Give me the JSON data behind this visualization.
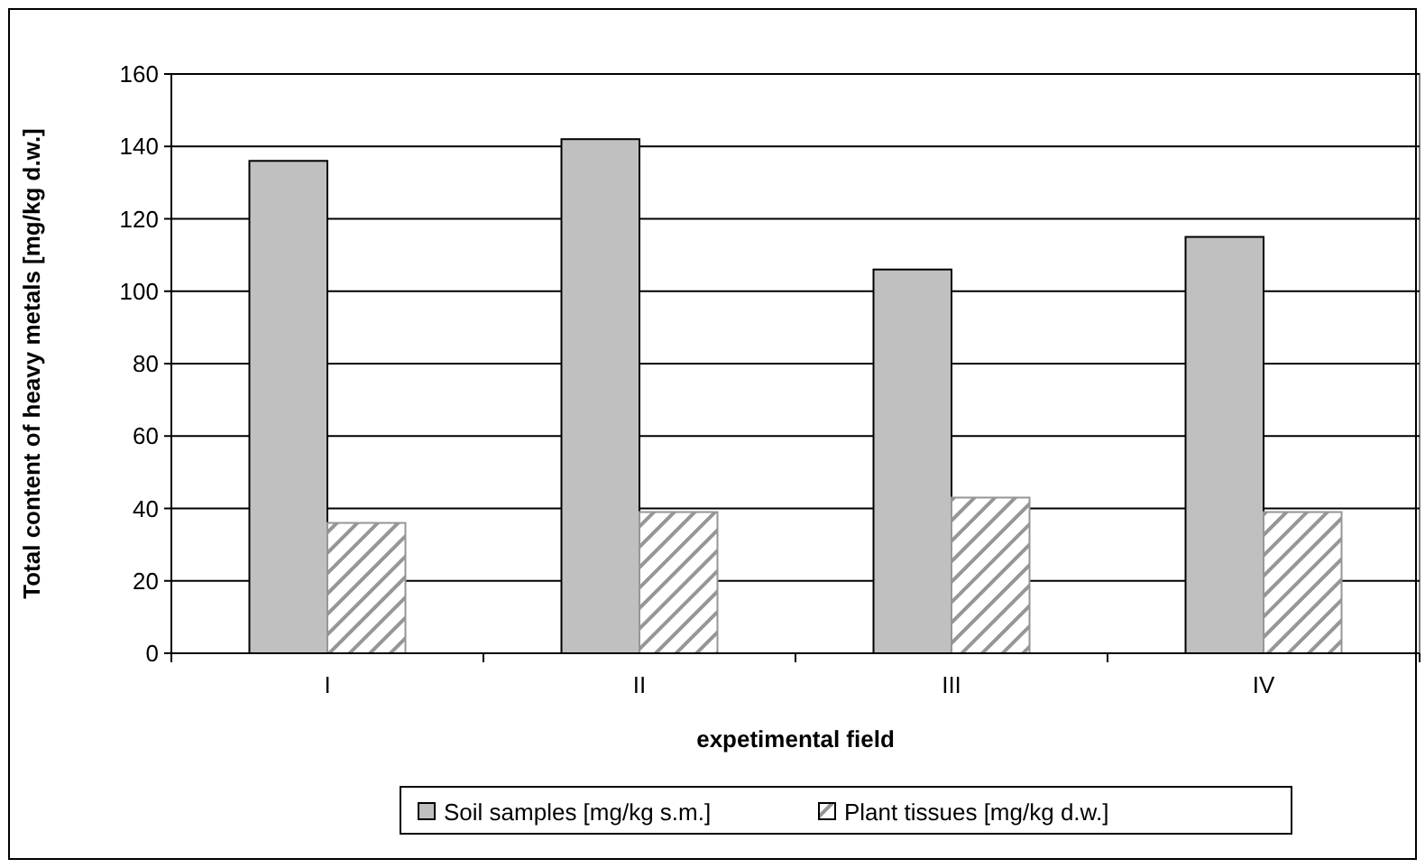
{
  "chart_data": {
    "type": "bar",
    "xlabel": "expetimental field",
    "ylabel": "Total content of heavy metals [mg/kg d.w.]",
    "categories": [
      "I",
      "II",
      "III",
      "IV"
    ],
    "series": [
      {
        "name": "Soil samples [mg/kg s.m.]",
        "color": "#c0c0c0",
        "values": [
          136,
          142,
          106,
          115
        ]
      },
      {
        "name": "Plant tissues [mg/kg d.w.]",
        "color": "#969696",
        "values": [
          36,
          39,
          43,
          39
        ]
      }
    ],
    "ylim": [
      0,
      160
    ],
    "yticks": [
      0,
      20,
      40,
      60,
      80,
      100,
      120,
      140,
      160
    ],
    "grid": "y",
    "legend": "bottom"
  }
}
